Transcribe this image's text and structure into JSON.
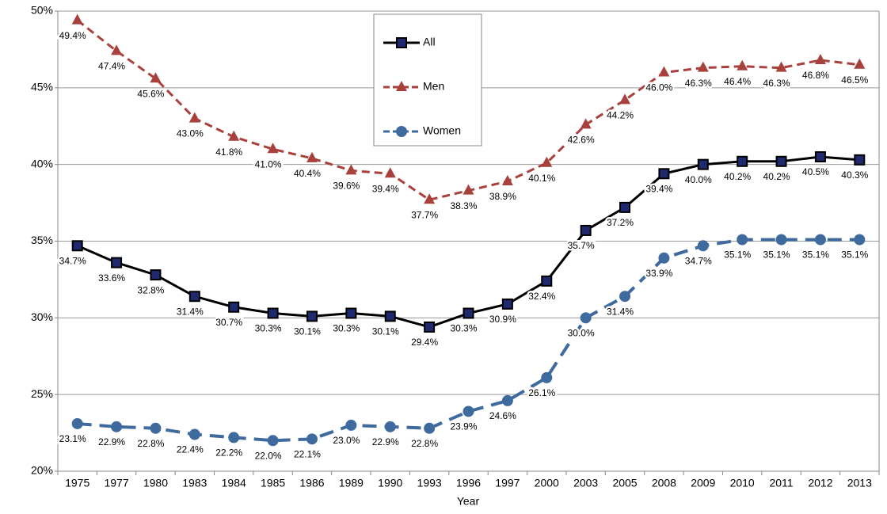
{
  "chart_data": {
    "type": "line",
    "x_label": "Year",
    "categories": [
      "1975",
      "1977",
      "1980",
      "1983",
      "1984",
      "1985",
      "1986",
      "1989",
      "1990",
      "1993",
      "1996",
      "1997",
      "2000",
      "2003",
      "2005",
      "2008",
      "2009",
      "2010",
      "2011",
      "2012",
      "2013"
    ],
    "series": [
      {
        "name": "All",
        "color": "#000000",
        "marker": "square",
        "dash": false,
        "values": [
          34.7,
          33.6,
          32.8,
          31.4,
          30.7,
          30.3,
          30.1,
          30.3,
          30.1,
          29.4,
          30.3,
          30.9,
          32.4,
          35.7,
          37.2,
          39.4,
          40.0,
          40.2,
          40.2,
          40.5,
          40.3
        ],
        "value_labels": [
          "34.7%",
          "33.6%",
          "32.8%",
          "31.4%",
          "30.7%",
          "30.3%",
          "30.1%",
          "30.3%",
          "30.1%",
          "29.4%",
          "30.3%",
          "30.9%",
          "32.4%",
          "35.7%",
          "37.2%",
          "39.4%",
          "40.0%",
          "40.2%",
          "40.2%",
          "40.5%",
          "40.3%"
        ]
      },
      {
        "name": "Men",
        "color": "#A8403C",
        "marker": "triangle",
        "dash": true,
        "values": [
          49.4,
          47.4,
          45.6,
          43.0,
          41.8,
          41.0,
          40.4,
          39.6,
          39.4,
          37.7,
          38.3,
          38.9,
          40.1,
          42.6,
          44.2,
          46.0,
          46.3,
          46.4,
          46.3,
          46.8,
          46.5
        ],
        "value_labels": [
          "49.4%",
          "47.4%",
          "45.6%",
          "43.0%",
          "41.8%",
          "41.0%",
          "40.4%",
          "39.6%",
          "39.4%",
          "37.7%",
          "38.3%",
          "38.9%",
          "40.1%",
          "42.6%",
          "44.2%",
          "46.0%",
          "46.3%",
          "46.4%",
          "46.3%",
          "46.8%",
          "46.5%"
        ]
      },
      {
        "name": "Women",
        "color": "#3F6A9E",
        "marker": "circle",
        "dash": true,
        "values": [
          23.1,
          22.9,
          22.8,
          22.4,
          22.2,
          22.0,
          22.1,
          23.0,
          22.9,
          22.8,
          23.9,
          24.6,
          26.1,
          30.0,
          31.4,
          33.9,
          34.7,
          35.1,
          35.1,
          35.1,
          35.1
        ],
        "value_labels": [
          "23.1%",
          "22.9%",
          "22.8%",
          "22.4%",
          "22.2%",
          "22.0%",
          "22.1%",
          "23.0%",
          "22.9%",
          "22.8%",
          "23.9%",
          "24.6%",
          "26.1%",
          "30.0%",
          "31.4%",
          "33.9%",
          "34.7%",
          "35.1%",
          "35.1%",
          "35.1%",
          "35.1%"
        ]
      }
    ],
    "ylim": [
      20,
      50
    ],
    "yticks": [
      {
        "value": 20,
        "label": "20%"
      },
      {
        "value": 25,
        "label": "25%"
      },
      {
        "value": 30,
        "label": "30%"
      },
      {
        "value": 35,
        "label": "35%"
      },
      {
        "value": 40,
        "label": "40%"
      },
      {
        "value": 45,
        "label": "45%"
      },
      {
        "value": 50,
        "label": "50%"
      }
    ],
    "grid": true
  }
}
